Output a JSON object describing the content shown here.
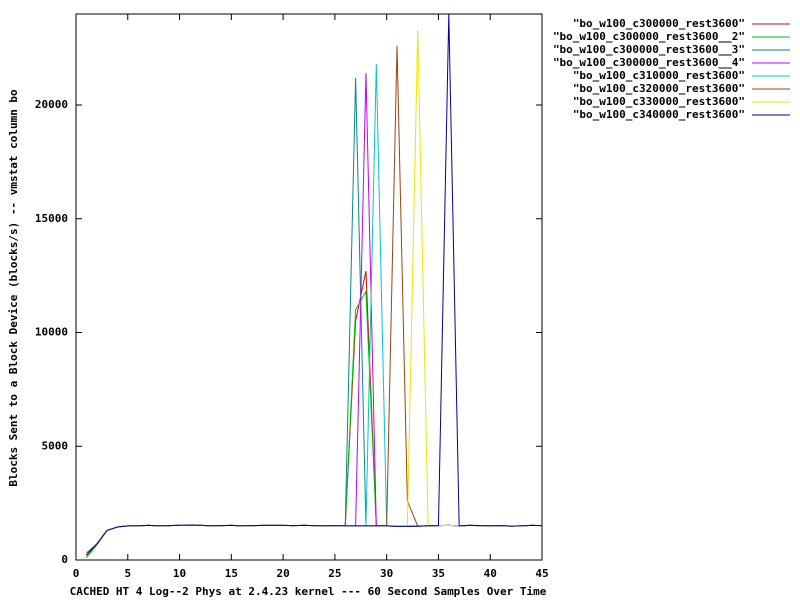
{
  "chart_data": {
    "type": "line",
    "xlabel": "CACHED HT 4 Log--2 Phys at 2.4.23 kernel --- 60 Second Samples Over Time",
    "ylabel": "Blocks Sent to a Block Device (blocks/s) -- vmstat column bo",
    "x": [
      1,
      2,
      3,
      4,
      5,
      6,
      7,
      8,
      9,
      10,
      11,
      12,
      13,
      14,
      15,
      16,
      17,
      18,
      19,
      20,
      21,
      22,
      23,
      24,
      25,
      26,
      27,
      28,
      29,
      30,
      31,
      32,
      33,
      34,
      35,
      36,
      37,
      38,
      39,
      40,
      41,
      42,
      43,
      44,
      45
    ],
    "xlim": [
      0,
      45
    ],
    "xticks": [
      0,
      5,
      10,
      15,
      20,
      25,
      30,
      35,
      40,
      45
    ],
    "ylim": [
      0,
      24000
    ],
    "yticks": [
      0,
      5000,
      10000,
      15000,
      20000
    ],
    "legend": "upper right outside",
    "series": [
      {
        "name": "\"bo_w100_c300000_rest3600\"",
        "color": "#e00000",
        "values": [
          300,
          700,
          1300,
          1450,
          1500,
          1500,
          1520,
          1500,
          1510,
          1530,
          1540,
          1530,
          1500,
          1510,
          1520,
          1500,
          1510,
          1520,
          1530,
          1520,
          1510,
          1520,
          1510,
          1500,
          1510,
          1500,
          10500,
          12700,
          1500,
          1500,
          1480,
          1480,
          1490,
          1500,
          1510,
          1520,
          1500,
          1520,
          1510,
          1500,
          1510,
          1490,
          1500,
          1520,
          1510
        ]
      },
      {
        "name": "\"bo_w100_c300000_rest3600__2\"",
        "color": "#00c000",
        "values": [
          100,
          650,
          1300,
          1450,
          1500,
          1500,
          1520,
          1500,
          1510,
          1530,
          1540,
          1530,
          1500,
          1510,
          1520,
          1500,
          1510,
          1520,
          1530,
          1520,
          1510,
          1520,
          1510,
          1500,
          1510,
          1500,
          11000,
          11800,
          1500,
          1500,
          1480,
          1480,
          1490,
          1500,
          1510,
          1520,
          1500,
          1520,
          1510,
          1500,
          1510,
          1490,
          1500,
          1520,
          1510
        ]
      },
      {
        "name": "\"bo_w100_c300000_rest3600__3\"",
        "color": "#008b8b",
        "values": [
          200,
          700,
          1300,
          1450,
          1500,
          1500,
          1520,
          1500,
          1510,
          1530,
          1540,
          1530,
          1500,
          1510,
          1520,
          1500,
          1510,
          1520,
          1530,
          1520,
          1510,
          1520,
          1510,
          1500,
          1510,
          1500,
          21200,
          1500,
          1500,
          1500,
          1480,
          1480,
          1490,
          1500,
          1510,
          1520,
          1500,
          1520,
          1510,
          1500,
          1510,
          1490,
          1500,
          1520,
          1510
        ]
      },
      {
        "name": "\"bo_w100_c300000_rest3600__4\"",
        "color": "#c000ff",
        "values": [
          200,
          700,
          1300,
          1450,
          1500,
          1500,
          1520,
          1500,
          1510,
          1530,
          1540,
          1530,
          1500,
          1510,
          1520,
          1500,
          1510,
          1520,
          1530,
          1520,
          1510,
          1520,
          1510,
          1500,
          1510,
          1500,
          1500,
          21400,
          1500,
          1500,
          1480,
          1480,
          1490,
          1500,
          1510,
          1520,
          1500,
          1520,
          1510,
          1500,
          1510,
          1490,
          1500,
          1520,
          1510
        ]
      },
      {
        "name": "\"bo_w100_c310000_rest3600\"",
        "color": "#00c8c8",
        "values": [
          200,
          700,
          1300,
          1450,
          1500,
          1500,
          1520,
          1500,
          1510,
          1530,
          1540,
          1530,
          1500,
          1510,
          1520,
          1500,
          1510,
          1520,
          1530,
          1520,
          1510,
          1520,
          1510,
          1500,
          1510,
          1500,
          1500,
          1500,
          21800,
          1500,
          1480,
          1480,
          1490,
          1500,
          1510,
          1520,
          1500,
          1520,
          1510,
          1500,
          1510,
          1490,
          1500,
          1520,
          1510
        ]
      },
      {
        "name": "\"bo_w100_c320000_rest3600\"",
        "color": "#a04010",
        "values": [
          200,
          700,
          1300,
          1450,
          1500,
          1500,
          1520,
          1500,
          1510,
          1530,
          1540,
          1530,
          1500,
          1510,
          1520,
          1500,
          1510,
          1520,
          1530,
          1520,
          1510,
          1520,
          1510,
          1500,
          1510,
          1500,
          1500,
          1500,
          1500,
          1500,
          22600,
          2600,
          1490,
          1500,
          1510,
          1520,
          1500,
          1520,
          1510,
          1500,
          1510,
          1490,
          1500,
          1520,
          1510
        ]
      },
      {
        "name": "\"bo_w100_c330000_rest3600\"",
        "color": "#e8e800",
        "values": [
          200,
          700,
          1300,
          1450,
          1500,
          1500,
          1520,
          1500,
          1510,
          1530,
          1540,
          1530,
          1500,
          1510,
          1520,
          1500,
          1510,
          1520,
          1530,
          1520,
          1510,
          1520,
          1510,
          1500,
          1510,
          1500,
          1500,
          1500,
          1500,
          1500,
          1480,
          1480,
          23300,
          1500,
          1510,
          1520,
          1500,
          1520,
          1510,
          1500,
          1510,
          1490,
          1500,
          1520,
          1510
        ]
      },
      {
        "name": "\"bo_w100_c340000_rest3600\"",
        "color": "#0000a0",
        "values": [
          200,
          700,
          1300,
          1450,
          1500,
          1500,
          1520,
          1500,
          1510,
          1530,
          1540,
          1530,
          1500,
          1510,
          1520,
          1500,
          1510,
          1520,
          1530,
          1520,
          1510,
          1520,
          1510,
          1500,
          1510,
          1500,
          1500,
          1500,
          1500,
          1500,
          1480,
          1480,
          1490,
          1500,
          1510,
          24000,
          1500,
          1520,
          1510,
          1500,
          1510,
          1490,
          1500,
          1520,
          1510
        ]
      }
    ]
  }
}
